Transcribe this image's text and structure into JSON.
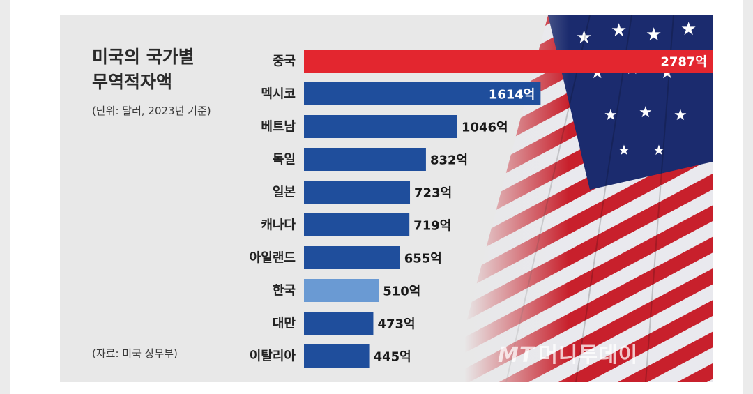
{
  "chart": {
    "title_line1": "미국의 국가별",
    "title_line2": "무역적자액",
    "subtitle": "(단위: 달러, 2023년 기준)",
    "source": "(자료: 미국 상무부)",
    "watermark_logo": "MT",
    "watermark_text": "머니투데이"
  },
  "chart_data": {
    "type": "bar",
    "orientation": "horizontal",
    "title": "미국의 국가별 무역적자액",
    "subtitle": "(단위: 달러, 2023년 기준)",
    "unit_suffix": "억",
    "categories": [
      "중국",
      "멕시코",
      "베트남",
      "독일",
      "일본",
      "캐나다",
      "아일랜드",
      "한국",
      "대만",
      "이탈리아"
    ],
    "values": [
      2787,
      1614,
      1046,
      832,
      723,
      719,
      655,
      510,
      473,
      445
    ],
    "value_labels": [
      "2787억",
      "1614억",
      "1046억",
      "832억",
      "723억",
      "719억",
      "655억",
      "510억",
      "473억",
      "445억"
    ],
    "bar_colors": [
      "#e3262f",
      "#1f4e9c",
      "#1f4e9c",
      "#1f4e9c",
      "#1f4e9c",
      "#1f4e9c",
      "#1f4e9c",
      "#6a9ad3",
      "#1f4e9c",
      "#1f4e9c"
    ],
    "xlim": [
      0,
      2787
    ],
    "grid": false,
    "legend": "none"
  }
}
